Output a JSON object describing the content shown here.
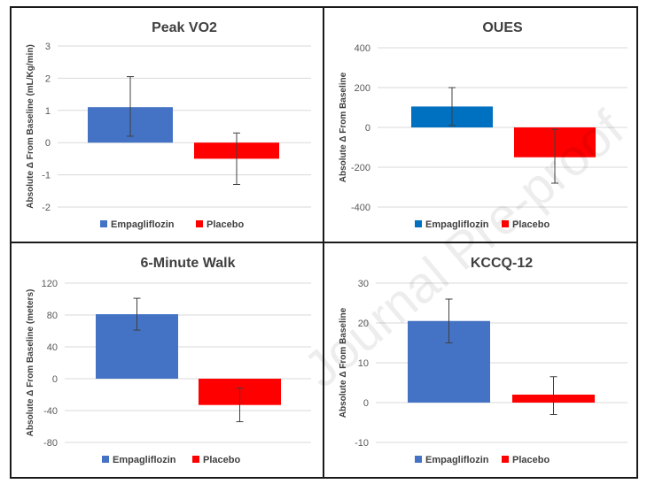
{
  "watermark": "Journal Pre-proof",
  "chart_data": [
    {
      "type": "bar",
      "title": "Peak VO2",
      "ylabel": "Absolute Δ From Baseline (mL/Kg/min)",
      "ylim": [
        -2,
        3
      ],
      "yticks": [
        -2,
        -1,
        0,
        1,
        2,
        3
      ],
      "grid": true,
      "legend_position": "bottom",
      "series": [
        {
          "name": "Empagliflozin",
          "color": "#4472C4",
          "value": 1.1,
          "error_low": 0.2,
          "error_high": 2.05
        },
        {
          "name": "Placebo",
          "color": "#FF0000",
          "value": -0.5,
          "error_low": -1.3,
          "error_high": 0.3
        }
      ]
    },
    {
      "type": "bar",
      "title": "OUES",
      "ylabel": "Absolute Δ From Baseline",
      "ylim": [
        -400,
        400
      ],
      "yticks": [
        -400,
        -200,
        0,
        200,
        400
      ],
      "grid": true,
      "legend_position": "bottom",
      "series": [
        {
          "name": "Empagliflozin",
          "color": "#0070C0",
          "value": 105,
          "error_low": 10,
          "error_high": 200
        },
        {
          "name": "Placebo",
          "color": "#FF0000",
          "value": -150,
          "error_low": -280,
          "error_high": -10
        }
      ]
    },
    {
      "type": "bar",
      "title": "6-Minute Walk",
      "ylabel": "Absolute Δ From Baseline (meters)",
      "ylim": [
        -80,
        120
      ],
      "yticks": [
        -80,
        -40,
        0,
        40,
        80,
        120
      ],
      "grid": true,
      "legend_position": "bottom",
      "series": [
        {
          "name": "Empagliflozin",
          "color": "#4472C4",
          "value": 81,
          "error_low": 61,
          "error_high": 101
        },
        {
          "name": "Placebo",
          "color": "#FF0000",
          "value": -33,
          "error_low": -54,
          "error_high": -12
        }
      ]
    },
    {
      "type": "bar",
      "title": "KCCQ-12",
      "ylabel": "Absolute Δ From Baseline",
      "ylim": [
        -10,
        30
      ],
      "yticks": [
        -10,
        0,
        10,
        20,
        30
      ],
      "grid": true,
      "legend_position": "bottom",
      "series": [
        {
          "name": "Empagliflozin",
          "color": "#4472C4",
          "value": 20.5,
          "error_low": 15,
          "error_high": 26
        },
        {
          "name": "Placebo",
          "color": "#FF0000",
          "value": 2,
          "error_low": -3,
          "error_high": 6.5
        }
      ]
    }
  ]
}
